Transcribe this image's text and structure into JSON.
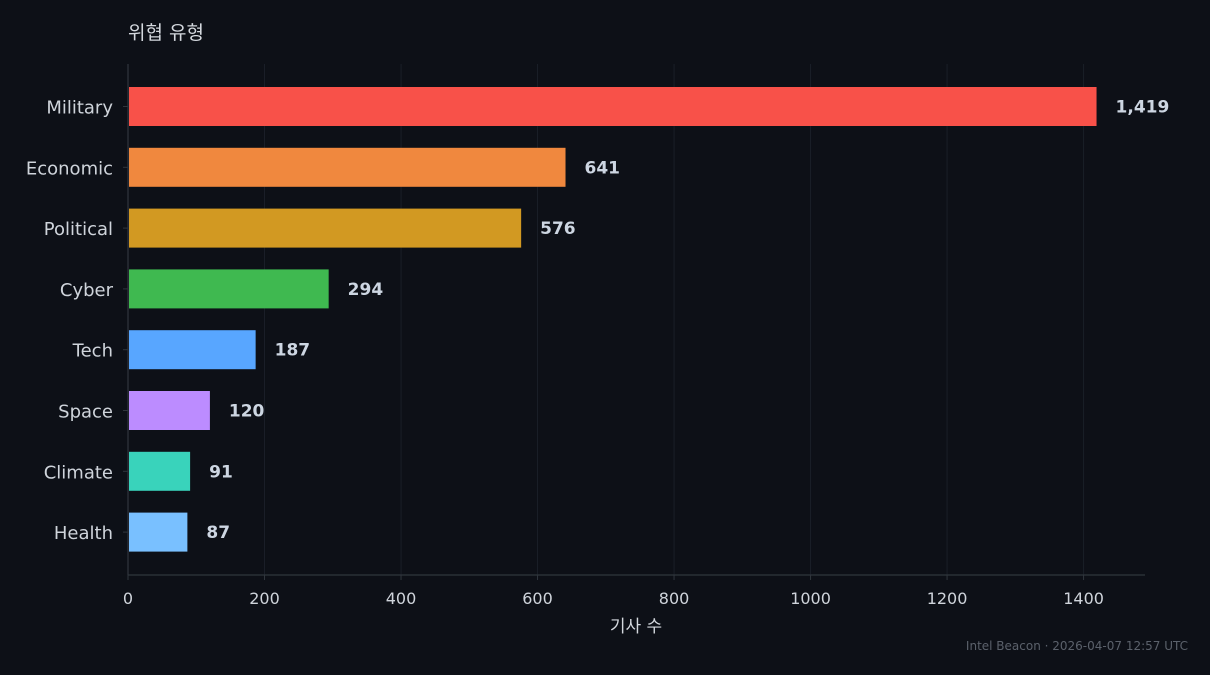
{
  "chart_data": {
    "type": "bar",
    "orientation": "horizontal",
    "title": "위협 유형",
    "xlabel": "기사 수",
    "ylabel": "",
    "categories": [
      "Military",
      "Economic",
      "Political",
      "Cyber",
      "Tech",
      "Space",
      "Climate",
      "Health"
    ],
    "values": [
      1419,
      641,
      576,
      294,
      187,
      120,
      91,
      87
    ],
    "value_labels": [
      "1,419",
      "641",
      "576",
      "294",
      "187",
      "120",
      "91",
      "87"
    ],
    "bar_colors": [
      "#f85149",
      "#f0883e",
      "#d29922",
      "#3fb950",
      "#58a6ff",
      "#bc8cff",
      "#39d3bb",
      "#79c0ff"
    ],
    "x_ticks": [
      0,
      200,
      400,
      600,
      800,
      1000,
      1200,
      1400
    ],
    "x_tick_labels": [
      "0",
      "200",
      "400",
      "600",
      "800",
      "1000",
      "1200",
      "1400"
    ],
    "xlim": [
      0,
      1490
    ],
    "grid": "vertical",
    "legend": "none"
  },
  "footer": {
    "text": "Intel Beacon · 2026-04-07 12:57 UTC"
  },
  "colors": {
    "background": "#0d1017",
    "grid": "#1a1f28",
    "axis": "#30363d",
    "text": "#cfd4db",
    "value_text": "#cdd6e2",
    "footer_text": "#5b616b"
  }
}
